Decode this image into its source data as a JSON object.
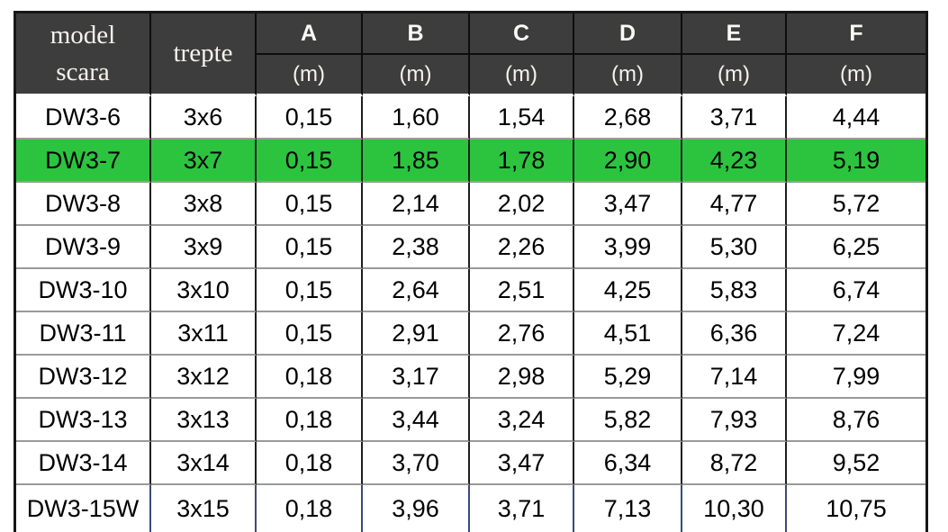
{
  "colors": {
    "header_bg": "#3d3d3d",
    "header_text": "#f5f3ec",
    "highlight_green": "#2cc43f",
    "grid_dark": "#161616",
    "grid_gray": "#9a9a9a",
    "last_row_grid": "#3b4a7a",
    "text": "#000000",
    "background": "#ffffff"
  },
  "chart_data": {
    "type": "table",
    "title": "",
    "header": {
      "model_column_label": "model scara",
      "steps_column_label": "trepte",
      "dimension_columns": [
        "A",
        "B",
        "C",
        "D",
        "E",
        "F"
      ],
      "unit_label": "(m)"
    },
    "highlighted_model": "DW3-7",
    "rows": [
      {
        "model": "DW3-6",
        "steps": "3x6",
        "values": [
          "0,15",
          "1,60",
          "1,54",
          "2,68",
          "3,71",
          "4,44"
        ],
        "highlight": false
      },
      {
        "model": "DW3-7",
        "steps": "3x7",
        "values": [
          "0,15",
          "1,85",
          "1,78",
          "2,90",
          "4,23",
          "5,19"
        ],
        "highlight": true
      },
      {
        "model": "DW3-8",
        "steps": "3x8",
        "values": [
          "0,15",
          "2,14",
          "2,02",
          "3,47",
          "4,77",
          "5,72"
        ],
        "highlight": false
      },
      {
        "model": "DW3-9",
        "steps": "3x9",
        "values": [
          "0,15",
          "2,38",
          "2,26",
          "3,99",
          "5,30",
          "6,25"
        ],
        "highlight": false
      },
      {
        "model": "DW3-10",
        "steps": "3x10",
        "values": [
          "0,15",
          "2,64",
          "2,51",
          "4,25",
          "5,83",
          "6,74"
        ],
        "highlight": false
      },
      {
        "model": "DW3-11",
        "steps": "3x11",
        "values": [
          "0,15",
          "2,91",
          "2,76",
          "4,51",
          "6,36",
          "7,24"
        ],
        "highlight": false
      },
      {
        "model": "DW3-12",
        "steps": "3x12",
        "values": [
          "0,18",
          "3,17",
          "2,98",
          "5,29",
          "7,14",
          "7,99"
        ],
        "highlight": false
      },
      {
        "model": "DW3-13",
        "steps": "3x13",
        "values": [
          "0,18",
          "3,44",
          "3,24",
          "5,82",
          "7,93",
          "8,76"
        ],
        "highlight": false
      },
      {
        "model": "DW3-14",
        "steps": "3x14",
        "values": [
          "0,18",
          "3,70",
          "3,47",
          "6,34",
          "8,72",
          "9,52"
        ],
        "highlight": false
      },
      {
        "model": "DW3-15W",
        "steps": "3x15",
        "values": [
          "0,18",
          "3,96",
          "3,71",
          "7,13",
          "10,30",
          "10,75"
        ],
        "highlight": false
      }
    ]
  }
}
